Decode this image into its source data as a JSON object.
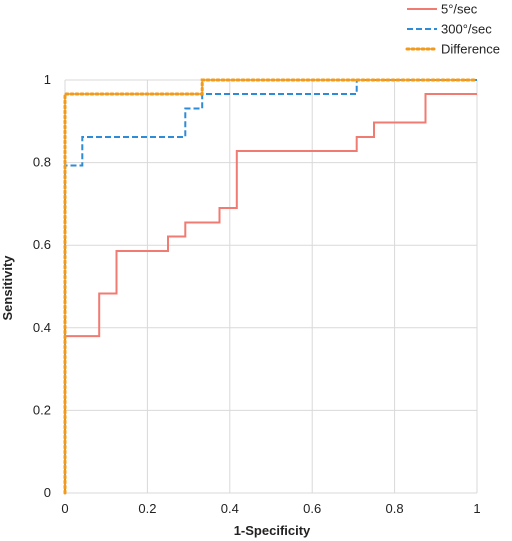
{
  "chart_data": {
    "type": "line",
    "xlabel": "1-Specificity",
    "ylabel": "Sensitivity",
    "xlim": [
      0,
      1
    ],
    "ylim": [
      0,
      1
    ],
    "x_ticks": [
      0,
      0.2,
      0.4,
      0.6,
      0.8,
      1
    ],
    "x_tick_labels": [
      "0",
      "0.2",
      "0.4",
      "0.6",
      "0.8",
      "1"
    ],
    "y_ticks": [
      0,
      0.2,
      0.4,
      0.6,
      0.8,
      1
    ],
    "y_tick_labels": [
      "0",
      "0.2",
      "0.4",
      "0.6",
      "0.8",
      "1"
    ],
    "grid": true,
    "legend_position": "top-right",
    "series": [
      {
        "name": "5°/sec",
        "color": "#f07b72",
        "dash": "solid",
        "x": [
          0,
          0,
          0.083,
          0.083,
          0.125,
          0.125,
          0.25,
          0.25,
          0.292,
          0.292,
          0.375,
          0.375,
          0.417,
          0.417,
          0.708,
          0.708,
          0.75,
          0.75,
          0.875,
          0.875,
          1
        ],
        "y": [
          0,
          0.38,
          0.38,
          0.483,
          0.483,
          0.586,
          0.586,
          0.621,
          0.621,
          0.655,
          0.655,
          0.69,
          0.69,
          0.828,
          0.828,
          0.862,
          0.862,
          0.897,
          0.897,
          0.966,
          0.966
        ]
      },
      {
        "name": "300°/sec",
        "color": "#2e8bd8",
        "dash": "dashed",
        "x": [
          0,
          0,
          0.042,
          0.042,
          0.292,
          0.292,
          0.333,
          0.333,
          0.708,
          0.708,
          1
        ],
        "y": [
          0,
          0.793,
          0.793,
          0.862,
          0.862,
          0.931,
          0.931,
          0.966,
          0.966,
          1.0,
          1.0
        ]
      },
      {
        "name": "Difference",
        "color": "#f29a1b",
        "dash": "dotted",
        "x": [
          0,
          0,
          0.333,
          0.333,
          1
        ],
        "y": [
          0,
          0.966,
          0.966,
          1.0,
          1.0
        ]
      }
    ]
  }
}
